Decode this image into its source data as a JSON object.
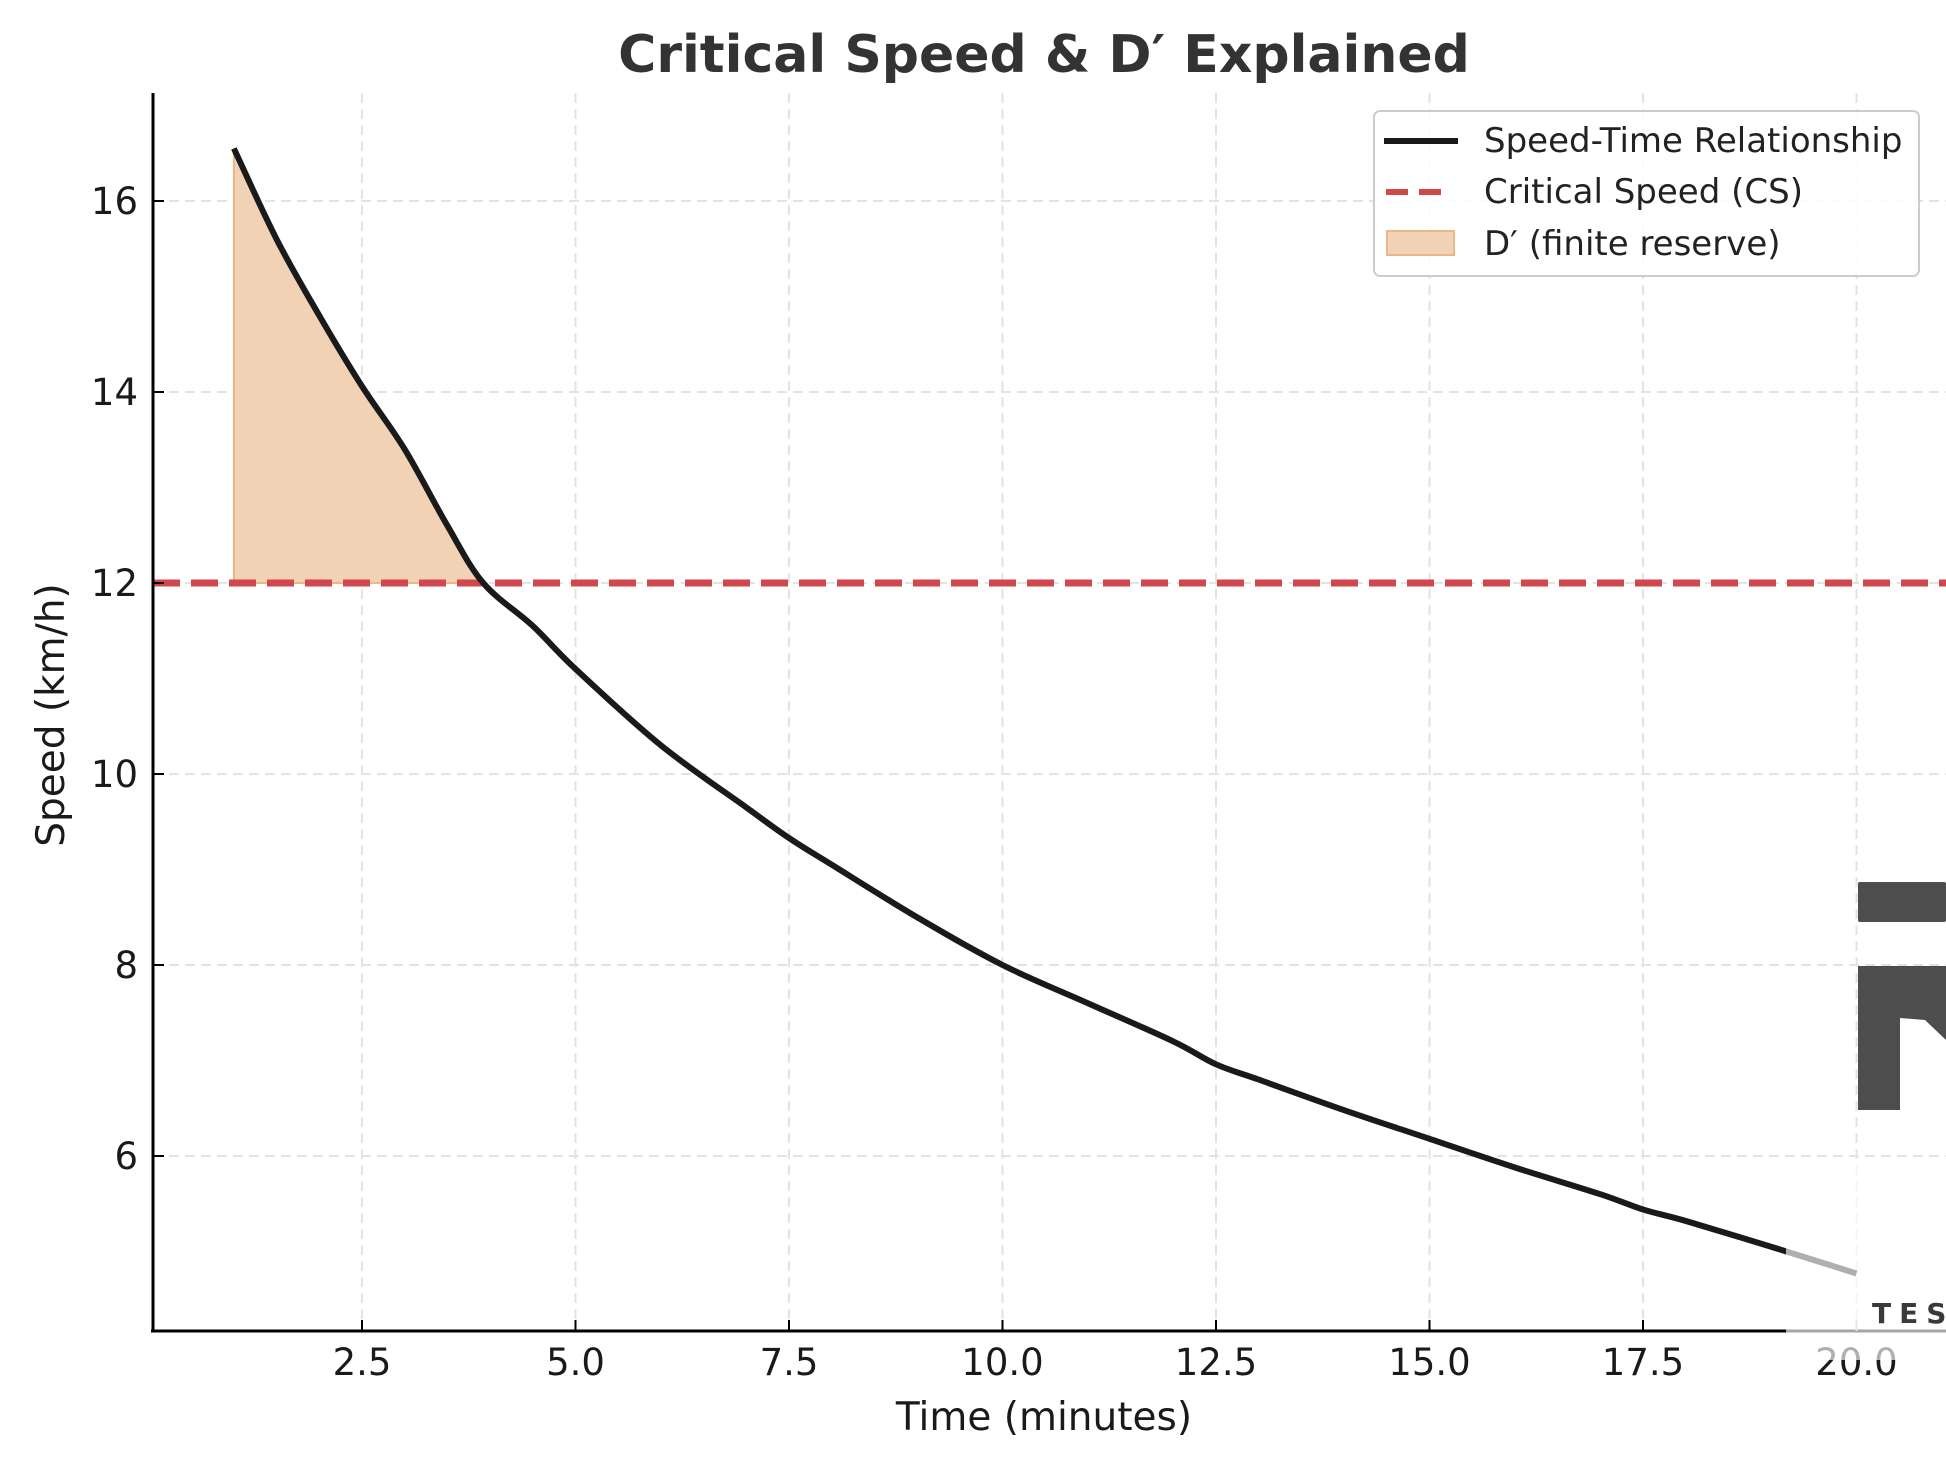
{
  "chart_data": {
    "type": "line",
    "title": "Critical Speed & D′ Explained",
    "xlabel": "Time (minutes)",
    "ylabel": "Speed (km/h)",
    "xlim": [
      0,
      21
    ],
    "ylim": [
      4.17,
      16.95
    ],
    "xticks": [
      "2.5",
      "5.0",
      "7.5",
      "10.0",
      "12.5",
      "15.0",
      "17.5",
      "20.0"
    ],
    "yticks": [
      "6",
      "8",
      "10",
      "12",
      "14",
      "16"
    ],
    "grid": true,
    "legend_position": "upper right",
    "series": [
      {
        "name": "Speed-Time Relationship",
        "style": "solid",
        "color": "#1a1a1a",
        "x": [
          1,
          1.5,
          2,
          2.5,
          3,
          3.5,
          3.92,
          4.5,
          5,
          6,
          7,
          7.5,
          8,
          9,
          10,
          11,
          12,
          12.5,
          13,
          14,
          15,
          16,
          17,
          17.5,
          18,
          19,
          20
        ],
        "y": [
          16.55,
          15.6,
          14.8,
          14.06,
          13.4,
          12.6,
          12.0,
          11.55,
          11.1,
          10.3,
          9.65,
          9.33,
          9.05,
          8.5,
          8.0,
          7.6,
          7.2,
          6.96,
          6.8,
          6.48,
          6.18,
          5.88,
          5.6,
          5.44,
          5.32,
          5.05,
          4.77
        ]
      },
      {
        "name": "Critical Speed (CS)",
        "style": "dashed",
        "color": "#d1474d",
        "y_constant": 12
      },
      {
        "name": "D′ (finite reserve)",
        "style": "fill",
        "color": "#f2d2b4",
        "x_range": [
          1,
          3.92
        ],
        "between": [
          "Speed-Time Relationship",
          "Critical Speed (CS)"
        ]
      }
    ]
  },
  "legend": {
    "items": [
      {
        "label": "Speed-Time Relationship"
      },
      {
        "label": "Critical Speed (CS)"
      },
      {
        "label": "D′ (finite reserve)"
      }
    ]
  },
  "watermark": {
    "text": "TES"
  },
  "colors": {
    "curve": "#1a1a1a",
    "critical_speed": "#d1474d",
    "reserve_fill": "#f2d2b4",
    "reserve_edge": "#eab68a",
    "grid": "#e3e3e3",
    "title": "#333333"
  }
}
